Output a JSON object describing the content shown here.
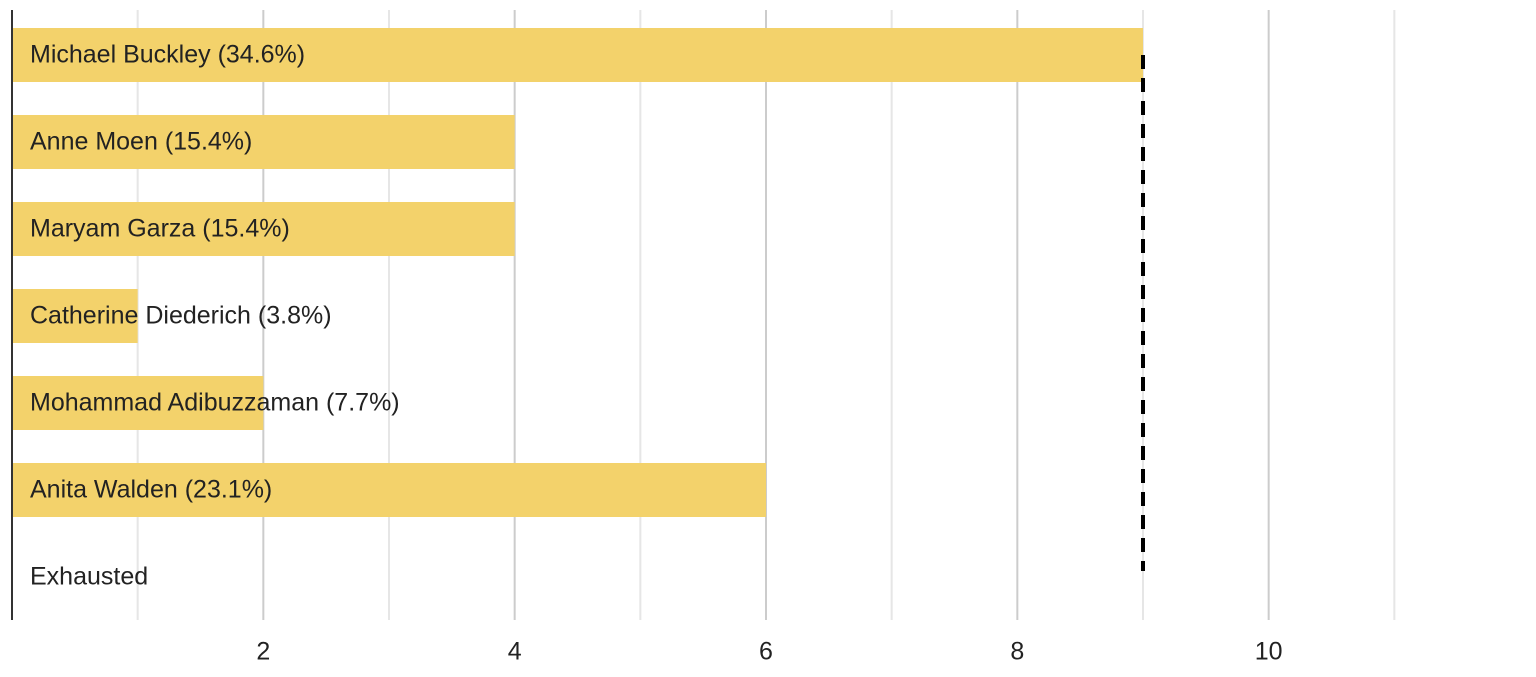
{
  "chart_data": {
    "type": "bar",
    "orientation": "horizontal",
    "categories": [
      "Michael Buckley (34.6%)",
      "Anne Moen (15.4%)",
      "Maryam Garza (15.4%)",
      "Catherine Diederich (3.8%)",
      "Mohammad Adibuzzaman (7.7%)",
      "Anita Walden (23.1%)",
      "Exhausted"
    ],
    "values": [
      9,
      4,
      4,
      1,
      2,
      6,
      0
    ],
    "color": "#f3d26b",
    "threshold": 9,
    "xlim": [
      0,
      12
    ],
    "xticks": [
      2,
      4,
      6,
      8,
      10
    ],
    "minor_xticks": [
      1,
      3,
      5,
      7,
      9,
      11
    ],
    "grid": true
  }
}
